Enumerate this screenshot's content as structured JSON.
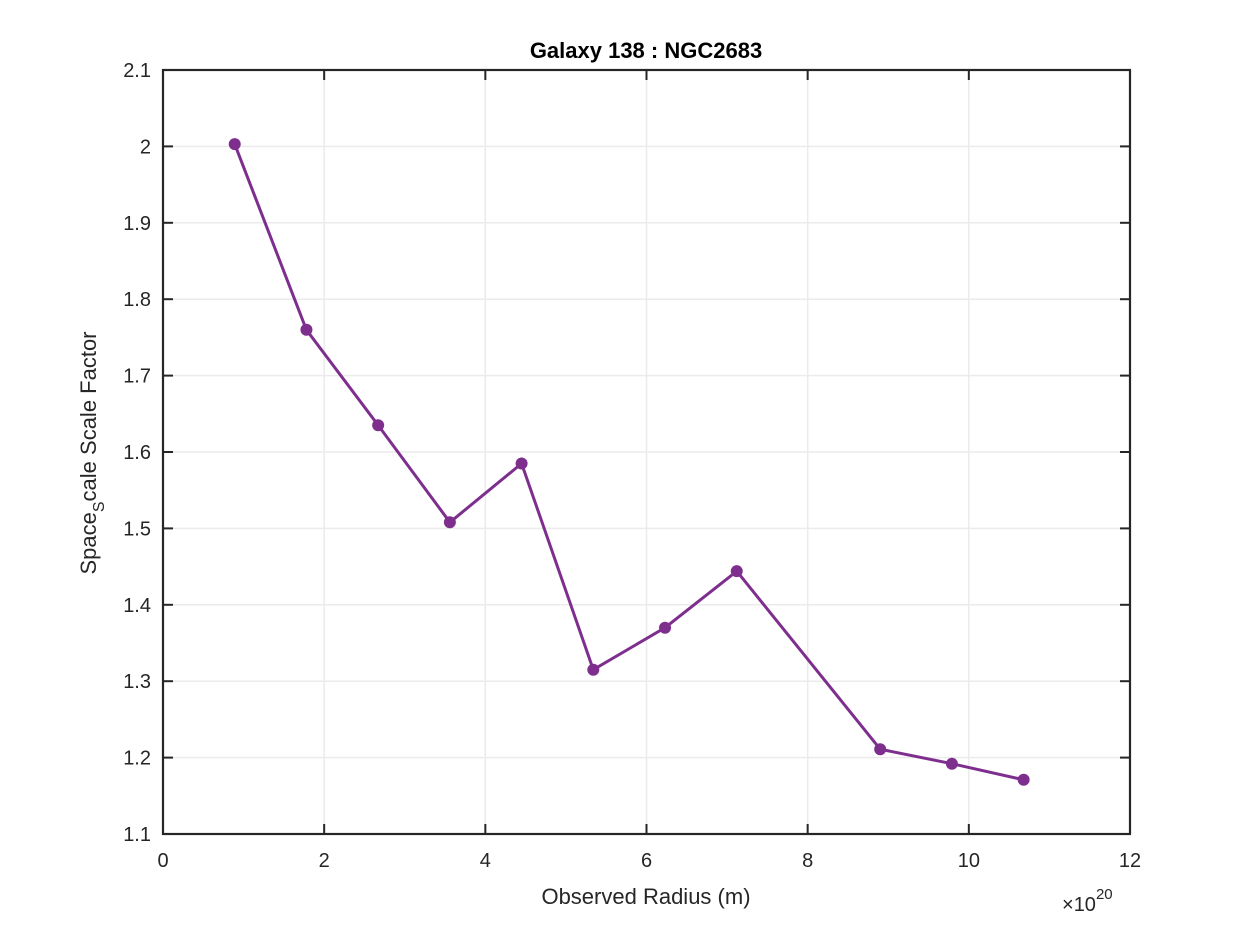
{
  "chart_data": {
    "type": "line",
    "title": "Galaxy 138 : NGC2683",
    "xlabel": "Observed Radius (m)",
    "ylabel_main": "Space",
    "ylabel_sub": "S",
    "ylabel_rest": "cale Scale Factor",
    "x_multiplier": {
      "base": "10",
      "exponent": "20",
      "prefix": "×"
    },
    "xlim": [
      0,
      12
    ],
    "ylim": [
      1.1,
      2.1
    ],
    "xticks": [
      0,
      2,
      4,
      6,
      8,
      10,
      12
    ],
    "xtick_labels": [
      "0",
      "2",
      "4",
      "6",
      "8",
      "10",
      "12"
    ],
    "yticks": [
      1.1,
      1.2,
      1.3,
      1.4,
      1.5,
      1.6,
      1.7,
      1.8,
      1.9,
      2.0,
      2.1
    ],
    "ytick_labels": [
      "1.1",
      "1.2",
      "1.3",
      "1.4",
      "1.5",
      "1.6",
      "1.7",
      "1.8",
      "1.9",
      "2",
      "2.1"
    ],
    "grid": true,
    "series": [
      {
        "color": "#7E2F8E",
        "x": [
          0.89,
          1.78,
          2.67,
          3.56,
          4.45,
          5.34,
          6.23,
          7.12,
          8.9,
          9.79,
          10.68
        ],
        "y": [
          2.003,
          1.76,
          1.635,
          1.508,
          1.585,
          1.315,
          1.37,
          1.444,
          1.211,
          1.192,
          1.171
        ]
      }
    ]
  }
}
